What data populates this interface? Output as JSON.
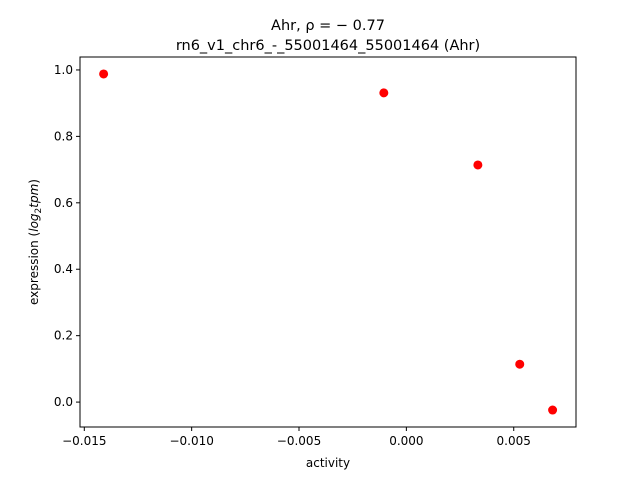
{
  "chart_data": {
    "type": "scatter",
    "title": "Ahr, ρ = − 0.77",
    "subtitle": "rn6_v1_chr6_-_55001464_55001464 (Ahr)",
    "xlabel": "activity",
    "ylabel_prefix": "expression (",
    "ylabel_math": "log",
    "ylabel_sub": "2",
    "ylabel_math2": "tpm",
    "ylabel_suffix": ")",
    "xlim": [
      -0.0152,
      0.0079
    ],
    "ylim": [
      -0.075,
      1.039
    ],
    "xticks": [
      -0.015,
      -0.01,
      -0.005,
      0.0,
      0.005
    ],
    "xtick_labels": [
      "−0.015",
      "−0.010",
      "−0.005",
      "0.000",
      "0.005"
    ],
    "yticks": [
      0.0,
      0.2,
      0.4,
      0.6,
      0.8,
      1.0
    ],
    "ytick_labels": [
      "0.0",
      "0.2",
      "0.4",
      "0.6",
      "0.8",
      "1.0"
    ],
    "grid": false,
    "marker_color": "#ff0000",
    "points": [
      {
        "x": -0.0141,
        "y": 0.988
      },
      {
        "x": -0.00105,
        "y": 0.931
      },
      {
        "x": 0.00333,
        "y": 0.714
      },
      {
        "x": 0.00528,
        "y": 0.114
      },
      {
        "x": 0.00681,
        "y": -0.024
      }
    ]
  }
}
